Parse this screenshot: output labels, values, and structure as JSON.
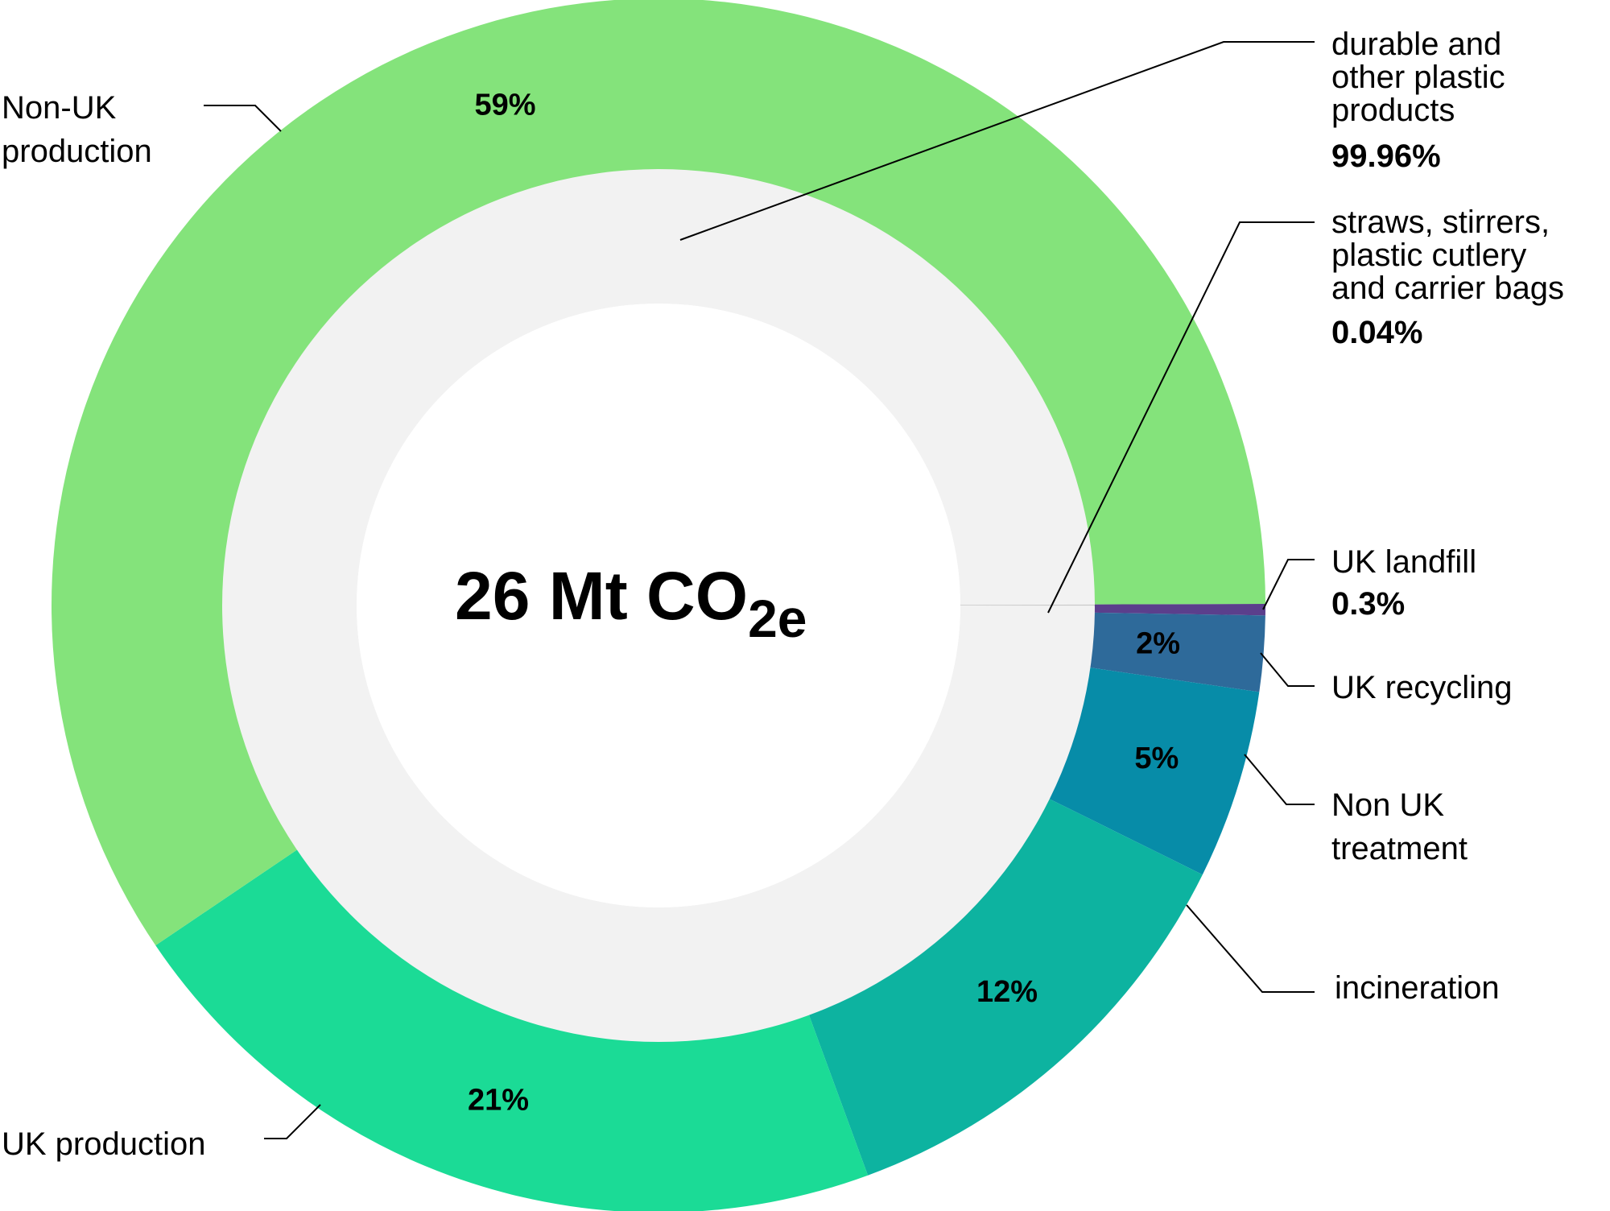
{
  "chart_data": {
    "type": "pie",
    "center_label": {
      "main": "26 Mt CO",
      "sub": "2e"
    },
    "outer_ring": [
      {
        "name": "UK landfill",
        "value": 0.3,
        "label": "0.3%",
        "color": "#5b3f8c"
      },
      {
        "name": "UK recycling",
        "value": 2,
        "label": "2%",
        "color": "#2e6a9a"
      },
      {
        "name": "Non UK treatment",
        "value": 5,
        "label": "5%",
        "color": "#078ca8"
      },
      {
        "name": "incineration",
        "value": 12,
        "label": "12%",
        "color": "#0db3a0"
      },
      {
        "name": "UK production",
        "value": 21,
        "label": "21%",
        "color": "#1bdb96"
      },
      {
        "name": "Non-UK production",
        "value": 59,
        "label": "59%",
        "color": "#84e37b"
      }
    ],
    "inner_ring": [
      {
        "name": "straws, stirrers, plastic cutlery and carrier bags",
        "value": 0.04,
        "label": "0.04%",
        "color": "#c8c8c8"
      },
      {
        "name": "durable and other plastic products",
        "value": 99.96,
        "label": "99.96%",
        "color": "#f2f2f2"
      }
    ]
  },
  "labels": {
    "non_uk_production": [
      "Non-UK",
      "production"
    ],
    "uk_production": [
      "UK production"
    ],
    "durable": [
      "durable and",
      "other plastic",
      "products"
    ],
    "durable_pct": "99.96%",
    "straws": [
      "straws, stirrers,",
      "plastic cutlery",
      "and carrier bags"
    ],
    "straws_pct": "0.04%",
    "uk_landfill": "UK landfill",
    "uk_landfill_pct": "0.3%",
    "uk_recycling": "UK recycling",
    "non_uk_treatment": [
      "Non UK",
      "treatment"
    ],
    "incineration": "incineration"
  }
}
